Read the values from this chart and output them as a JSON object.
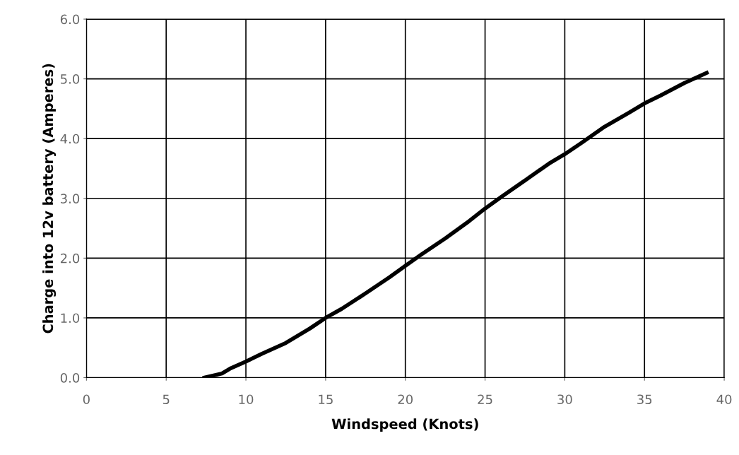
{
  "chart_data": {
    "type": "line",
    "xlabel": "Windspeed (Knots)",
    "ylabel": "Charge into 12v battery (Amperes)",
    "x": [
      7.4,
      8.5,
      9.0,
      10.0,
      11.0,
      12.5,
      14.0,
      15.0,
      16.0,
      17.5,
      19.0,
      20.0,
      21.0,
      22.5,
      24.0,
      25.0,
      26.0,
      27.5,
      29.0,
      30.0,
      31.0,
      32.5,
      34.0,
      35.0,
      36.0,
      37.5,
      38.9
    ],
    "series": [
      {
        "color": "#000000",
        "values": [
          0.0,
          0.07,
          0.15,
          0.27,
          0.4,
          0.58,
          0.82,
          1.0,
          1.15,
          1.41,
          1.68,
          1.87,
          2.06,
          2.33,
          2.62,
          2.83,
          3.02,
          3.3,
          3.58,
          3.74,
          3.92,
          4.2,
          4.43,
          4.59,
          4.72,
          4.93,
          5.1
        ]
      }
    ],
    "xlim": [
      0,
      40
    ],
    "xticks": [
      0,
      5,
      10,
      15,
      20,
      25,
      30,
      35,
      40
    ],
    "ylim": [
      0,
      6
    ],
    "yticks": [
      {
        "value": 0,
        "label": "0.0"
      },
      {
        "value": 1,
        "label": "1.0"
      },
      {
        "value": 2,
        "label": "2.0"
      },
      {
        "value": 3,
        "label": "3.0"
      },
      {
        "value": 4,
        "label": "4.0"
      },
      {
        "value": 5,
        "label": "5.0"
      },
      {
        "value": 6,
        "label": "6.0"
      }
    ],
    "grid": true,
    "line_style": "solid",
    "marker": "none"
  }
}
